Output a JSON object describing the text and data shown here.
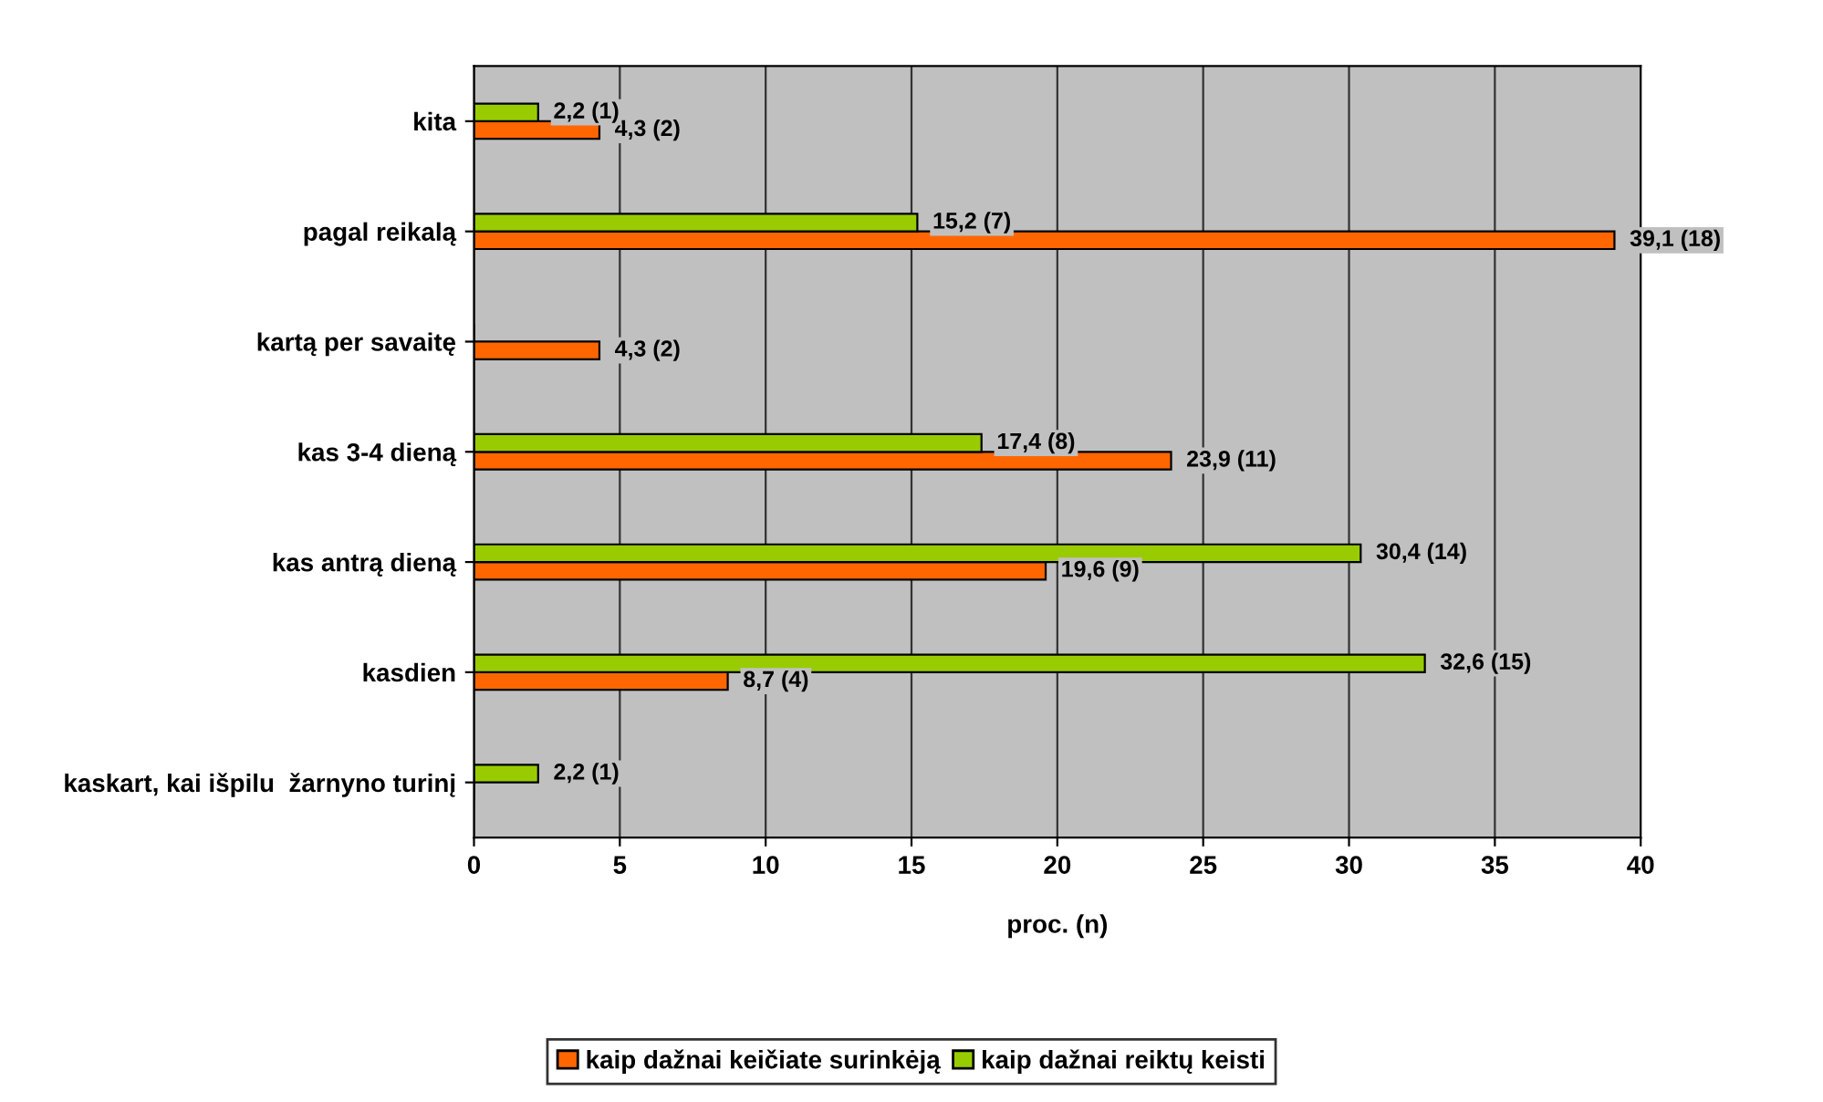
{
  "chart_data": {
    "type": "bar",
    "orientation": "horizontal",
    "xlabel": "proc. (n)",
    "categories": [
      "kita",
      "pagal reikalą",
      "kartą per savaitę",
      "kas 3-4 dieną",
      "kas antrą dieną",
      "kasdien",
      "kaskart, kai išpilu  žarnyno turinį"
    ],
    "series": [
      {
        "name": "kaip dažnai keičiate surinkėją",
        "color": "#ff6600",
        "values": [
          4.3,
          39.1,
          4.3,
          23.9,
          19.6,
          8.7,
          0
        ],
        "value_labels": [
          "4,3 (2)",
          "39,1 (18)",
          "4,3 (2)",
          "23,9 (11)",
          "19,6 (9)",
          "8,7 (4)",
          null
        ]
      },
      {
        "name": "kaip dažnai reiktų keisti",
        "color": "#99cc00",
        "values": [
          2.2,
          15.2,
          0,
          17.4,
          30.4,
          32.6,
          2.2
        ],
        "value_labels": [
          "2,2 (1)",
          "15,2 (7)",
          null,
          "17,4 (8)",
          "30,4 (14)",
          "32,6 (15)",
          "2,2 (1)"
        ]
      }
    ],
    "xlim": [
      0,
      40
    ],
    "xticks": [
      0,
      5,
      10,
      15,
      20,
      25,
      30,
      35,
      40
    ],
    "grid": "x",
    "legend": "bottom"
  }
}
